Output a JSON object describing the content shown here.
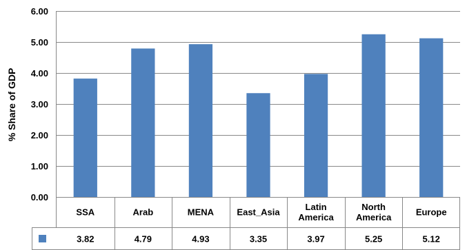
{
  "chart_data": {
    "type": "bar",
    "categories": [
      [
        "SSA"
      ],
      [
        "Arab"
      ],
      [
        "MENA"
      ],
      [
        "East_Asia"
      ],
      [
        "Latin",
        "America"
      ],
      [
        "North",
        "America"
      ],
      [
        "Europe"
      ]
    ],
    "values": [
      3.82,
      4.79,
      4.93,
      3.35,
      3.97,
      5.25,
      5.12
    ],
    "value_labels": [
      "3.82",
      "4.79",
      "4.93",
      "3.35",
      "3.97",
      "5.25",
      "5.12"
    ],
    "title": "",
    "xlabel": "",
    "ylabel": "% Share of GDP",
    "ylim": [
      0,
      6
    ],
    "yticks": [
      0,
      1,
      2,
      3,
      4,
      5,
      6
    ],
    "ytick_labels": [
      "0.00",
      "1.00",
      "2.00",
      "3.00",
      "4.00",
      "5.00",
      "6.00"
    ],
    "grid": "horizontal",
    "legend": "data-table",
    "bar_color": "#4f81bd",
    "gridline_color": "#888888",
    "data_table": true
  }
}
